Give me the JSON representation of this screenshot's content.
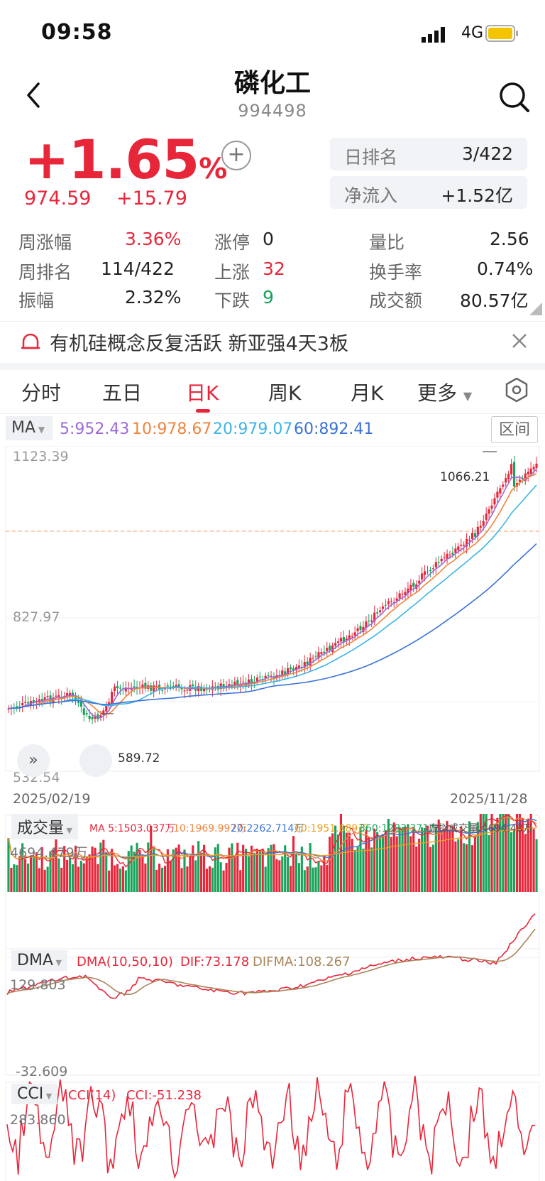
{
  "status_bar": {
    "time": "09:58",
    "network": "4G"
  },
  "header": {
    "title": "磷化工",
    "code": "994498"
  },
  "quote": {
    "change_pct": "+1.65",
    "pct_unit": "%",
    "price": "974.59",
    "change": "+15.79",
    "rank_label": "日排名",
    "rank_value": "3/422",
    "inflow_label": "净流入",
    "inflow_value": "+1.52亿"
  },
  "stats": {
    "week_change_label": "周涨幅",
    "week_change": "3.36%",
    "week_rank_label": "周排名",
    "week_rank": "114/422",
    "amplitude_label": "振幅",
    "amplitude": "2.32%",
    "limit_up_label": "涨停",
    "limit_up": "0",
    "up_label": "上涨",
    "up": "32",
    "down_label": "下跌",
    "down": "9",
    "vol_ratio_label": "量比",
    "vol_ratio": "2.56",
    "turnover_label": "换手率",
    "turnover": "0.74%",
    "amount_label": "成交额",
    "amount": "80.57亿"
  },
  "notice": {
    "text": "有机硅概念反复活跃  新亚强4天3板"
  },
  "tabs": [
    "分时",
    "五日",
    "日K",
    "周K",
    "月K",
    "更多"
  ],
  "ma_bar": {
    "label": "MA",
    "ma5": "5:952.43",
    "ma10": "10:978.67",
    "ma20": "20:979.07",
    "ma60": "60:892.41",
    "range_button": "区间"
  },
  "kline": {
    "y_max": "1123.39",
    "y_mid": "827.97",
    "y_min": "532.54",
    "high_mark": "1066.21",
    "low_mark": "589.72",
    "date_start": "2025/02/19",
    "date_end": "2025/11/28"
  },
  "volume": {
    "label": "成交量",
    "ma5": "MA 5:1503.037万",
    "ma10": "10:1969.997万",
    "ma20": "20:2262.714万",
    "ma60": "60:1951.889万",
    "ma360": "360:1283.371万",
    "virtual": "虚拟成交量:4694.48万",
    "max": "4694.479万"
  },
  "dma": {
    "label": "DMA",
    "params": "DMA(10,50,10)",
    "dif": "DIF:73.178",
    "difma": "DIFMA:108.267",
    "max": "129.803",
    "min": "-32.609"
  },
  "cci": {
    "label": "CCI",
    "params": "CCI(14)",
    "value": "CCI:-51.238",
    "max": "283.860"
  },
  "colors": {
    "up": "#e8263a",
    "down": "#17a35a",
    "ma5": "#9b6bd6",
    "ma10": "#f0843c",
    "ma20": "#3db3e8",
    "ma60": "#3a72d8"
  }
}
